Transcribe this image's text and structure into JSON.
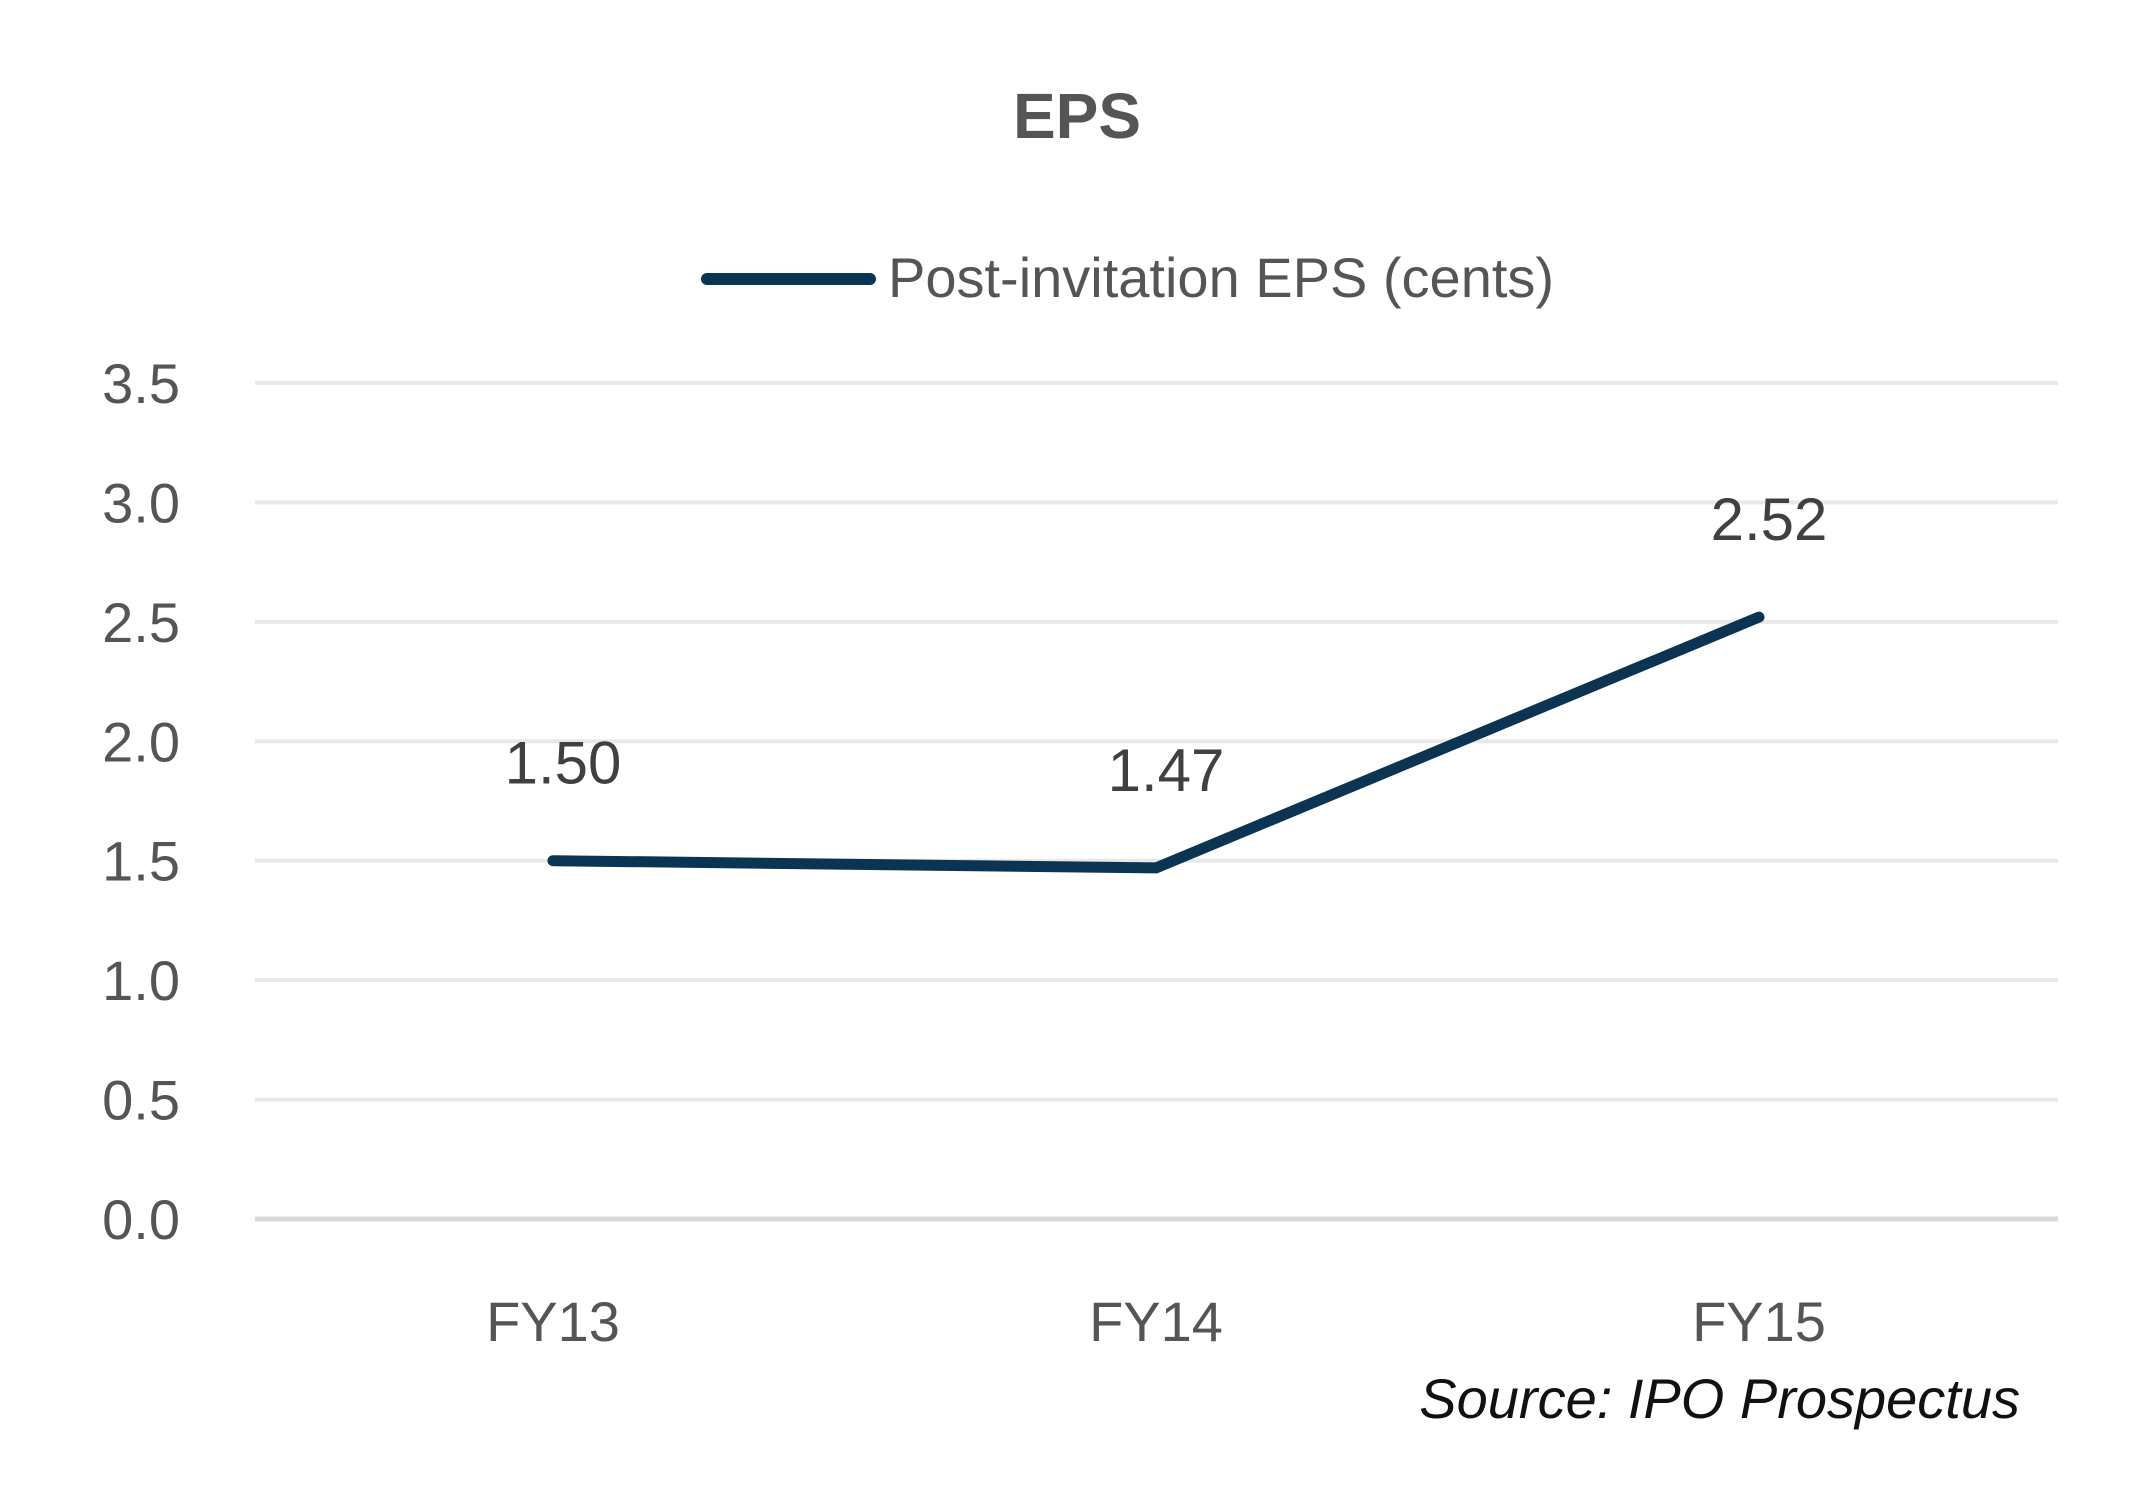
{
  "chart_data": {
    "type": "line",
    "title": "EPS",
    "categories": [
      "FY13",
      "FY14",
      "FY15"
    ],
    "series": [
      {
        "name": "Post-invitation EPS (cents)",
        "values": [
          1.5,
          1.47,
          2.52
        ],
        "data_labels": [
          "1.50",
          "1.47",
          "2.52"
        ],
        "color": "#0b3452"
      }
    ],
    "ylim": [
      0,
      3.5
    ],
    "y_ticks": [
      "0.0",
      "0.5",
      "1.0",
      "1.5",
      "2.0",
      "2.5",
      "3.0",
      "3.5"
    ],
    "y_tick_values": [
      0,
      0.5,
      1.0,
      1.5,
      2.0,
      2.5,
      3.0,
      3.5
    ],
    "grid": true,
    "legend_position": "top",
    "source_note": "Source: IPO Prospectus",
    "colors": {
      "text": "#555555",
      "gridline": "#e8e8e8",
      "axis": "#d9d9d9"
    }
  }
}
